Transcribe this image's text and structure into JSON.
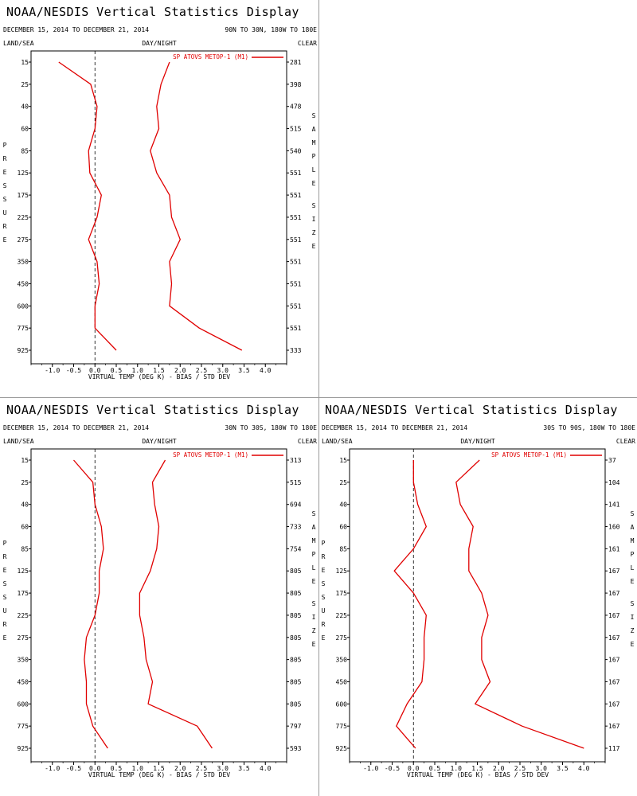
{
  "chart_data": [
    {
      "type": "line",
      "title": "NOAA/NESDIS Vertical Statistics Display",
      "date_range": "DECEMBER 15, 2014 TO DECEMBER 21, 2014",
      "region": "90N TO 30N, 180W TO 180E",
      "header_labels": {
        "left": "LAND/SEA",
        "center": "DAY/NIGHT",
        "right": "CLEAR"
      },
      "xlabel": "VIRTUAL TEMP (DEG K) - BIAS / STD DEV",
      "ylabel": "PRESSURE",
      "y2label": "SAMPLE SIZE",
      "legend": "SP ATOVS METOP-1 (M1)",
      "xlim": [
        -1.5,
        4.5
      ],
      "xticks": [
        "-1.0",
        "-0.5",
        "0.0",
        "0.5",
        "1.0",
        "1.5",
        "2.0",
        "2.5",
        "3.0",
        "3.5",
        "4.0"
      ],
      "pressure_levels": [
        "15",
        "25",
        "40",
        "60",
        "85",
        "125",
        "175",
        "225",
        "275",
        "350",
        "450",
        "600",
        "775",
        "925"
      ],
      "sample_size": [
        "281",
        "398",
        "478",
        "515",
        "540",
        "551",
        "551",
        "551",
        "551",
        "551",
        "551",
        "551",
        "551",
        "333"
      ],
      "series": [
        {
          "name": "BIAS",
          "values": [
            -0.85,
            -0.1,
            0.05,
            0.0,
            -0.15,
            -0.12,
            0.15,
            0.05,
            -0.15,
            0.05,
            0.1,
            0.0,
            0.0,
            0.5
          ]
        },
        {
          "name": "STD DEV",
          "values": [
            1.75,
            1.55,
            1.45,
            1.5,
            1.3,
            1.45,
            1.75,
            1.8,
            2.0,
            1.75,
            1.8,
            1.75,
            2.45,
            3.45
          ]
        }
      ]
    },
    {
      "type": "line",
      "title": "NOAA/NESDIS Vertical Statistics Display",
      "date_range": "DECEMBER 15, 2014 TO DECEMBER 21, 2014",
      "region": "30N TO 30S, 180W TO 180E",
      "header_labels": {
        "left": "LAND/SEA",
        "center": "DAY/NIGHT",
        "right": "CLEAR"
      },
      "xlabel": "VIRTUAL TEMP (DEG K) - BIAS / STD DEV",
      "ylabel": "PRESSURE",
      "y2label": "SAMPLE SIZE",
      "legend": "SP ATOVS METOP-1 (M1)",
      "xlim": [
        -1.5,
        4.5
      ],
      "xticks": [
        "-1.0",
        "-0.5",
        "0.0",
        "0.5",
        "1.0",
        "1.5",
        "2.0",
        "2.5",
        "3.0",
        "3.5",
        "4.0"
      ],
      "pressure_levels": [
        "15",
        "25",
        "40",
        "60",
        "85",
        "125",
        "175",
        "225",
        "275",
        "350",
        "450",
        "600",
        "775",
        "925"
      ],
      "sample_size": [
        "313",
        "515",
        "694",
        "733",
        "754",
        "805",
        "805",
        "805",
        "805",
        "805",
        "805",
        "805",
        "797",
        "593"
      ],
      "series": [
        {
          "name": "BIAS",
          "values": [
            -0.5,
            -0.05,
            0.0,
            0.15,
            0.2,
            0.1,
            0.1,
            0.0,
            -0.2,
            -0.25,
            -0.2,
            -0.2,
            -0.05,
            0.3
          ]
        },
        {
          "name": "STD DEV",
          "values": [
            1.65,
            1.35,
            1.4,
            1.5,
            1.45,
            1.3,
            1.05,
            1.05,
            1.15,
            1.2,
            1.35,
            1.25,
            2.4,
            2.75
          ]
        }
      ]
    },
    {
      "type": "line",
      "title": "NOAA/NESDIS Vertical Statistics Display",
      "date_range": "DECEMBER 15, 2014 TO DECEMBER 21, 2014",
      "region": "30S TO 90S, 180W TO 180E",
      "header_labels": {
        "left": "LAND/SEA",
        "center": "DAY/NIGHT",
        "right": "CLEAR"
      },
      "xlabel": "VIRTUAL TEMP (DEG K) - BIAS / STD DEV",
      "ylabel": "PRESSURE",
      "y2label": "SAMPLE SIZE",
      "legend": "SP ATOVS METOP-1 (M1)",
      "xlim": [
        -1.5,
        4.5
      ],
      "xticks": [
        "-1.0",
        "-0.5",
        "0.0",
        "0.5",
        "1.0",
        "1.5",
        "2.0",
        "2.5",
        "3.0",
        "3.5",
        "4.0"
      ],
      "pressure_levels": [
        "15",
        "25",
        "40",
        "60",
        "85",
        "125",
        "175",
        "225",
        "275",
        "350",
        "450",
        "600",
        "775",
        "925"
      ],
      "sample_size": [
        "37",
        "104",
        "141",
        "160",
        "161",
        "167",
        "167",
        "167",
        "167",
        "167",
        "167",
        "167",
        "167",
        "117"
      ],
      "series": [
        {
          "name": "BIAS",
          "values": [
            0.0,
            0.0,
            0.1,
            0.3,
            0.0,
            -0.45,
            0.0,
            0.3,
            0.25,
            0.25,
            0.2,
            -0.15,
            -0.4,
            0.05
          ]
        },
        {
          "name": "STD DEV",
          "values": [
            1.55,
            1.0,
            1.1,
            1.4,
            1.3,
            1.3,
            1.6,
            1.75,
            1.6,
            1.6,
            1.8,
            1.45,
            2.55,
            4.0
          ]
        }
      ]
    }
  ]
}
